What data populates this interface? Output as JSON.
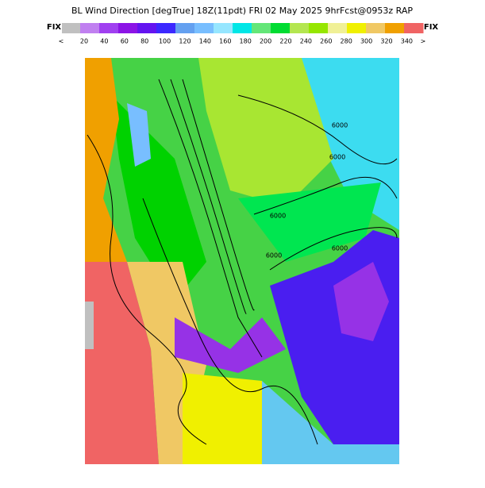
{
  "header": {
    "title": "BL Wind Direction [degTrue] 18Z(11pdt) FRI 02 May 2025 9hrFcst@0953z RAP"
  },
  "colorbar": {
    "left_label": "FIX",
    "right_label": "FIX",
    "under_label": "<",
    "over_label": ">",
    "fix_color": "#c0c0c0",
    "colors": [
      "#c080f0",
      "#a040f0",
      "#8c14e6",
      "#6414f0",
      "#3c28ff",
      "#64a0f0",
      "#78beff",
      "#96e6ff",
      "#00e6e6",
      "#64e678",
      "#00dc32",
      "#b4e650",
      "#96e600",
      "#f0f096",
      "#f0f000",
      "#f0c864",
      "#f0a000",
      "#f06464"
    ],
    "ticks": [
      20,
      40,
      60,
      80,
      100,
      120,
      140,
      160,
      180,
      200,
      220,
      240,
      260,
      280,
      300,
      320,
      340
    ]
  },
  "map": {
    "contour_labels": [
      "6000",
      "6000",
      "6000",
      "6000",
      "6000"
    ]
  }
}
